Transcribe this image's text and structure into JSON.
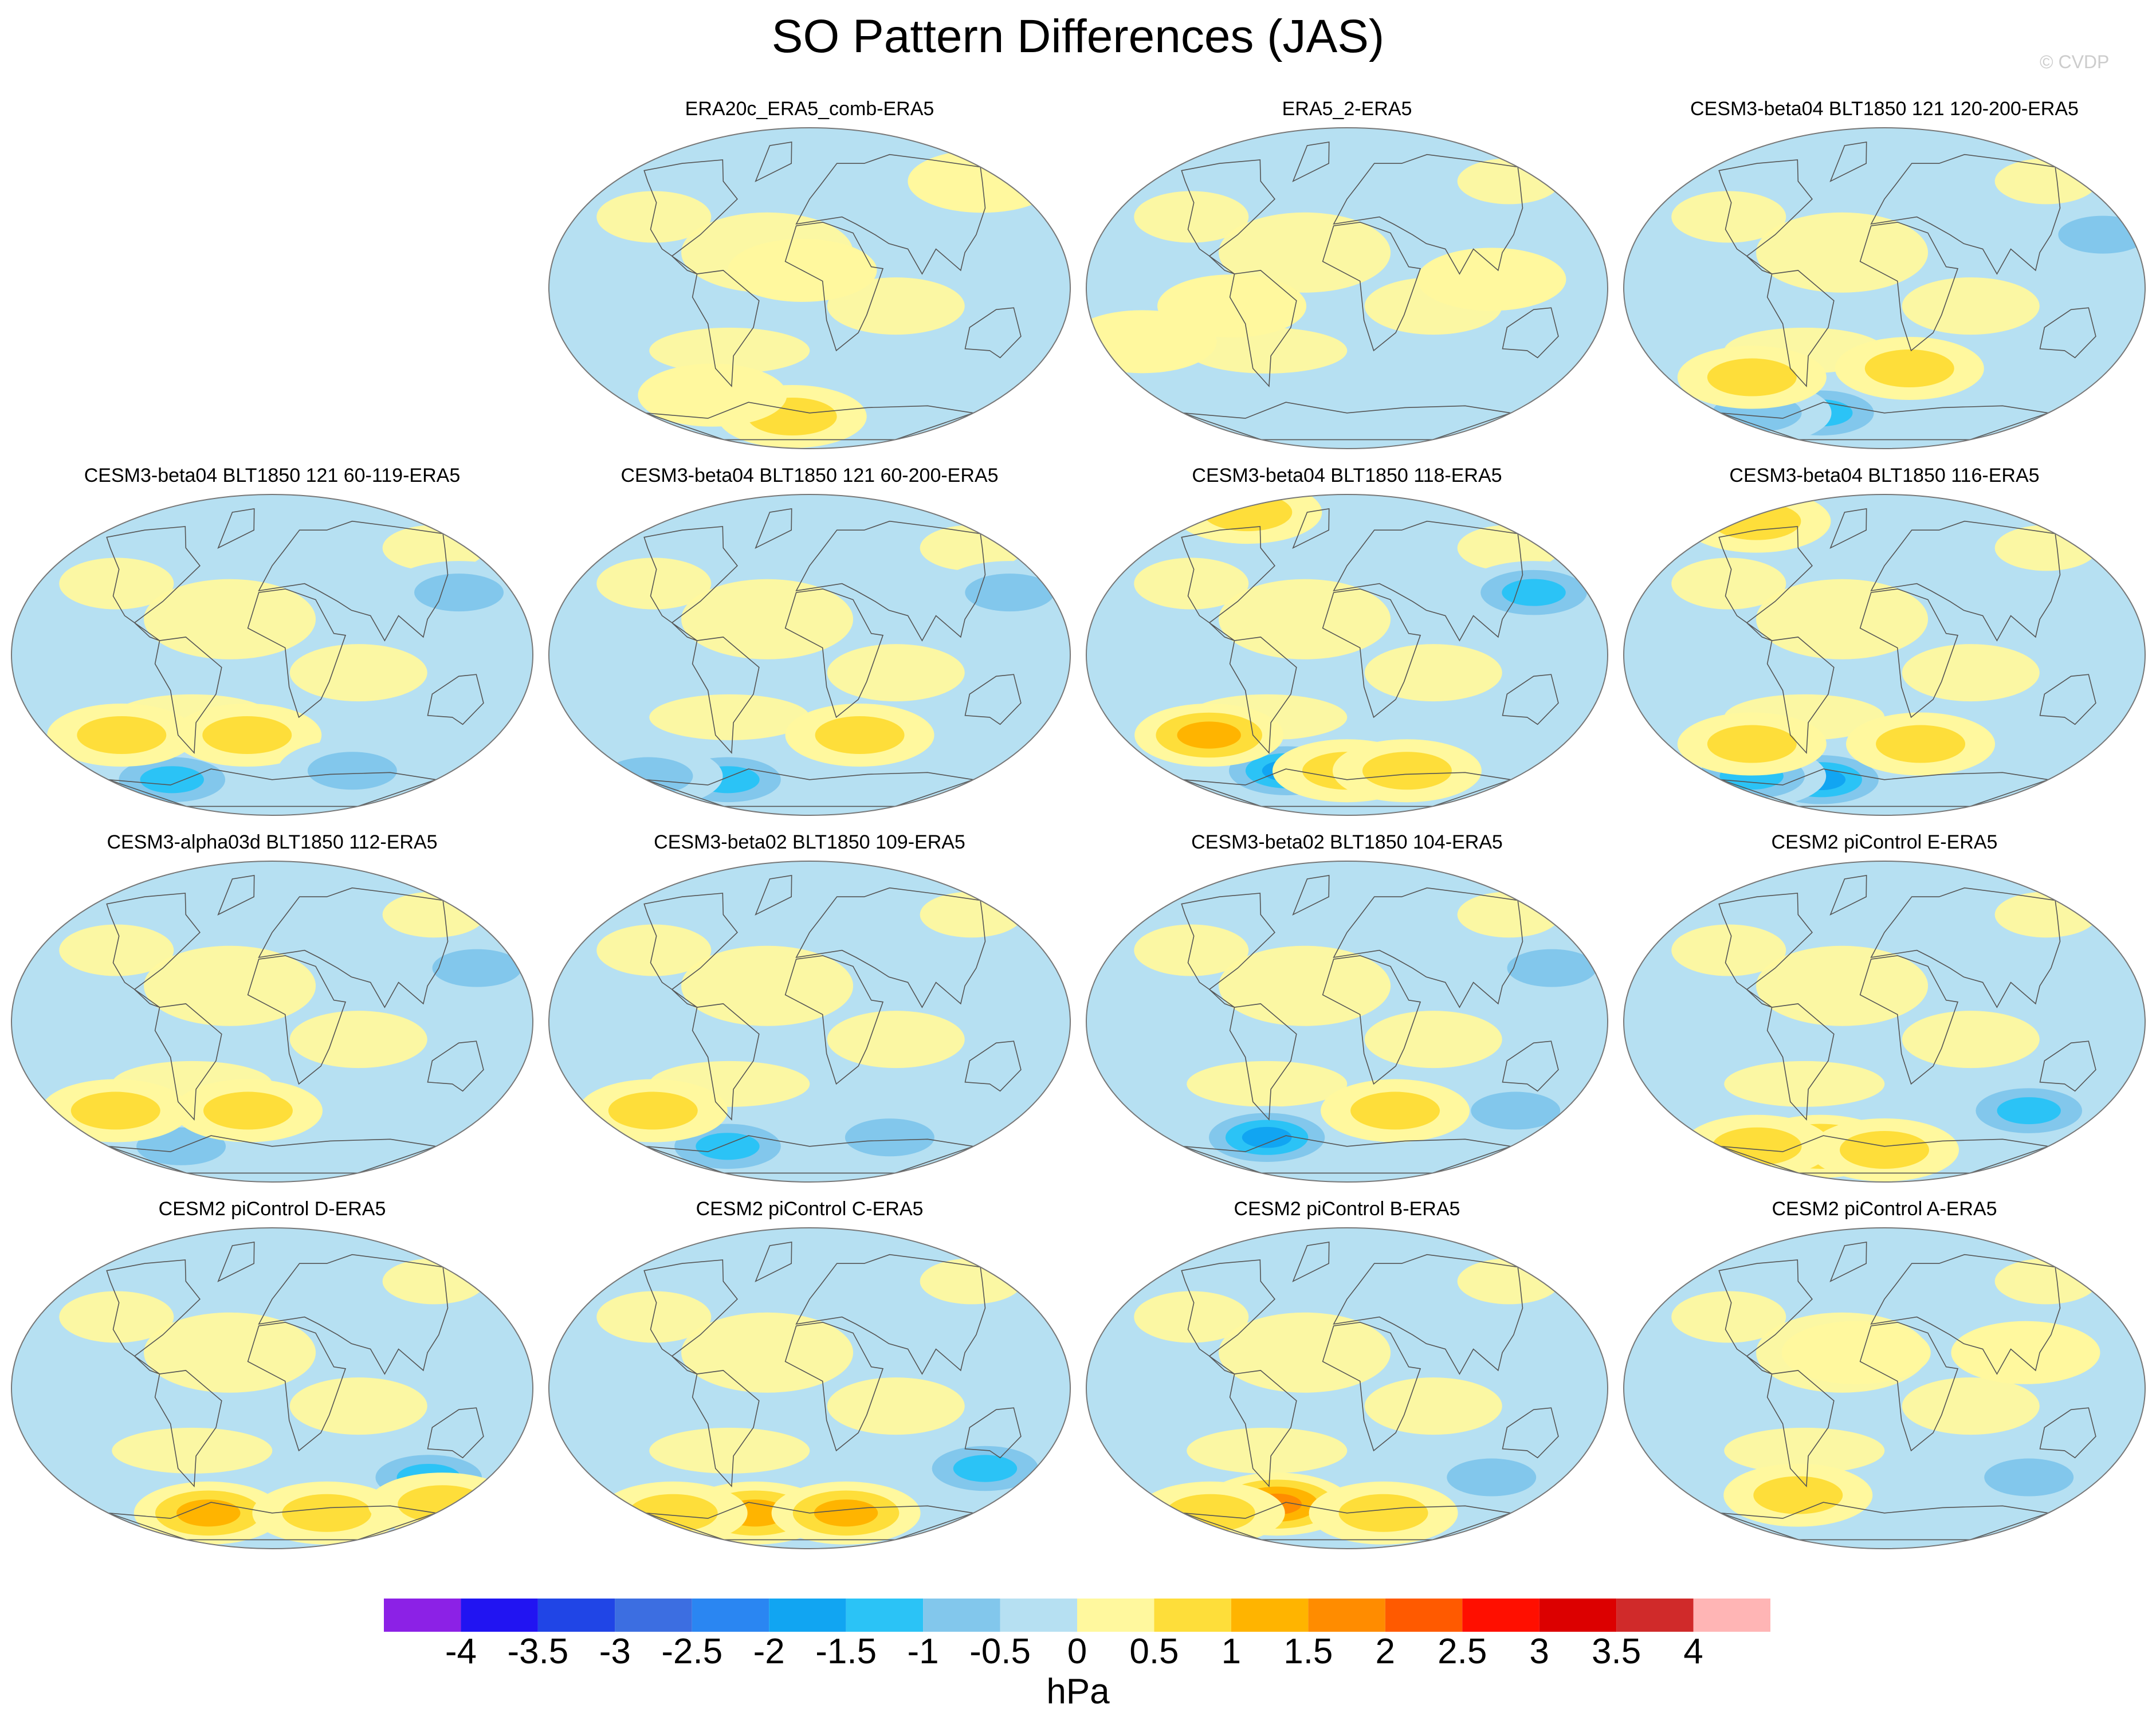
{
  "title": "SO Pattern Differences (JAS)",
  "credit": "© CVDP",
  "chart_data": {
    "type": "heatmap",
    "title": "SO Pattern Differences (JAS)",
    "units": "hPa",
    "projection": "global map (Robinson-like ellipse)",
    "colorbar": {
      "ticks": [
        "-4",
        "-3.5",
        "-3",
        "-2.5",
        "-2",
        "-1.5",
        "-1",
        "-0.5",
        "0",
        "0.5",
        "1",
        "1.5",
        "2",
        "2.5",
        "3",
        "3.5",
        "4"
      ],
      "colors": [
        "#8c21e6",
        "#2114f2",
        "#2045e6",
        "#3c6ee1",
        "#2a86f2",
        "#11a5f2",
        "#2bc3f6",
        "#82c7ec",
        "#b6e0f2",
        "#fff89e",
        "#fede3a",
        "#ffb400",
        "#ff8c00",
        "#ff5a00",
        "#ff0f00",
        "#dc0000",
        "#d02a2a",
        "#ffb5b5"
      ],
      "range": [
        -4,
        4
      ],
      "interval": 0.5
    },
    "panels": [
      {
        "label": "ERA20c_ERA5_comb-ERA5",
        "features": [
          {
            "lon": -20,
            "lat": -72,
            "value": 0.6
          },
          {
            "lon": -90,
            "lat": -60,
            "value": 0.5
          },
          {
            "lon": 160,
            "lat": 60,
            "value": 0.5
          },
          {
            "lon": -5,
            "lat": 10,
            "value": 0.4
          }
        ]
      },
      {
        "label": "ERA5_2-ERA5",
        "features": [
          {
            "lon": -80,
            "lat": -10,
            "value": 0.5
          },
          {
            "lon": 100,
            "lat": 5,
            "value": 0.5
          },
          {
            "lon": -150,
            "lat": -30,
            "value": 0.5
          },
          {
            "lon": 20,
            "lat": -70,
            "value": -0.3
          }
        ]
      },
      {
        "label": "CESM3-beta04 BLT1850 121 120-200-ERA5",
        "features": [
          {
            "lon": -70,
            "lat": -70,
            "value": -1.5
          },
          {
            "lon": -140,
            "lat": -70,
            "value": -1.0
          },
          {
            "lon": -110,
            "lat": -50,
            "value": 0.8
          },
          {
            "lon": 20,
            "lat": -45,
            "value": 0.7
          },
          {
            "lon": 160,
            "lat": 30,
            "value": -0.6
          }
        ]
      },
      {
        "label": "CESM3-beta04 BLT1850 121 60-119-ERA5",
        "features": [
          {
            "lon": -110,
            "lat": -70,
            "value": -1.5
          },
          {
            "lon": -120,
            "lat": -45,
            "value": 0.8
          },
          {
            "lon": -20,
            "lat": -45,
            "value": 0.7
          },
          {
            "lon": 140,
            "lat": 35,
            "value": -0.8
          },
          {
            "lon": 80,
            "lat": -65,
            "value": -0.7
          }
        ]
      },
      {
        "label": "CESM3-beta04 BLT1850 121 60-200-ERA5",
        "features": [
          {
            "lon": -90,
            "lat": -70,
            "value": -1.5
          },
          {
            "lon": -170,
            "lat": -68,
            "value": -0.8
          },
          {
            "lon": 40,
            "lat": -45,
            "value": 0.7
          },
          {
            "lon": 150,
            "lat": 35,
            "value": -0.6
          }
        ]
      },
      {
        "label": "CESM3-beta04 BLT1850 118-ERA5",
        "features": [
          {
            "lon": -60,
            "lat": -65,
            "value": -2.0
          },
          {
            "lon": -110,
            "lat": -45,
            "value": 1.5
          },
          {
            "lon": 140,
            "lat": 35,
            "value": -1.5
          },
          {
            "lon": -150,
            "lat": 80,
            "value": 1.0
          },
          {
            "lon": 0,
            "lat": -65,
            "value": 0.8
          },
          {
            "lon": 60,
            "lat": -65,
            "value": 0.6
          }
        ]
      },
      {
        "label": "CESM3-beta04 BLT1850 116-ERA5",
        "features": [
          {
            "lon": -70,
            "lat": -70,
            "value": -2.0
          },
          {
            "lon": -140,
            "lat": -68,
            "value": -1.5
          },
          {
            "lon": -110,
            "lat": -50,
            "value": 0.8
          },
          {
            "lon": 30,
            "lat": -50,
            "value": 0.6
          },
          {
            "lon": -160,
            "lat": 75,
            "value": 0.8
          }
        ]
      },
      {
        "label": "CESM3-alpha03d BLT1850 112-ERA5",
        "features": [
          {
            "lon": -100,
            "lat": -70,
            "value": -1.0
          },
          {
            "lon": -130,
            "lat": -50,
            "value": 1.0
          },
          {
            "lon": -20,
            "lat": -50,
            "value": 0.8
          },
          {
            "lon": 150,
            "lat": 30,
            "value": -0.6
          }
        ]
      },
      {
        "label": "CESM3-beta02 BLT1850 109-ERA5",
        "features": [
          {
            "lon": -90,
            "lat": -70,
            "value": -1.5
          },
          {
            "lon": -130,
            "lat": -50,
            "value": 0.8
          },
          {
            "lon": 80,
            "lat": -65,
            "value": -0.6
          },
          {
            "lon": 150,
            "lat": 30,
            "value": -0.5
          }
        ]
      },
      {
        "label": "CESM3-beta02 BLT1850 104-ERA5",
        "features": [
          {
            "lon": -80,
            "lat": -65,
            "value": -2.0
          },
          {
            "lon": 140,
            "lat": -50,
            "value": -1.0
          },
          {
            "lon": 40,
            "lat": -50,
            "value": 0.6
          },
          {
            "lon": 150,
            "lat": 30,
            "value": -0.6
          }
        ]
      },
      {
        "label": "CESM2 piControl E-ERA5",
        "features": [
          {
            "lon": 120,
            "lat": -50,
            "value": -1.5
          },
          {
            "lon": -70,
            "lat": -70,
            "value": 1.5
          },
          {
            "lon": -140,
            "lat": -70,
            "value": 1.0
          },
          {
            "lon": 0,
            "lat": -72,
            "value": 0.6
          }
        ]
      },
      {
        "label": "CESM2 piControl D-ERA5",
        "features": [
          {
            "lon": 130,
            "lat": -50,
            "value": -1.5
          },
          {
            "lon": -70,
            "lat": -70,
            "value": 1.5
          },
          {
            "lon": 60,
            "lat": -70,
            "value": 0.8
          },
          {
            "lon": 170,
            "lat": -65,
            "value": 0.8
          }
        ]
      },
      {
        "label": "CESM2 piControl C-ERA5",
        "features": [
          {
            "lon": 140,
            "lat": -45,
            "value": -1.5
          },
          {
            "lon": -60,
            "lat": -70,
            "value": 1.3
          },
          {
            "lon": 40,
            "lat": -70,
            "value": 1.3
          },
          {
            "lon": -150,
            "lat": -70,
            "value": 1.0
          }
        ]
      },
      {
        "label": "CESM2 piControl B-ERA5",
        "features": [
          {
            "lon": -70,
            "lat": -65,
            "value": 1.8
          },
          {
            "lon": 120,
            "lat": -50,
            "value": -0.6
          },
          {
            "lon": 40,
            "lat": -70,
            "value": 0.8
          },
          {
            "lon": -150,
            "lat": -70,
            "value": 0.8
          }
        ]
      },
      {
        "label": "CESM2 piControl A-ERA5",
        "features": [
          {
            "lon": 120,
            "lat": -50,
            "value": -0.6
          },
          {
            "lon": -80,
            "lat": -60,
            "value": 0.8
          },
          {
            "lon": -20,
            "lat": 20,
            "value": 0.5
          },
          {
            "lon": 100,
            "lat": 20,
            "value": 0.5
          }
        ]
      }
    ]
  }
}
